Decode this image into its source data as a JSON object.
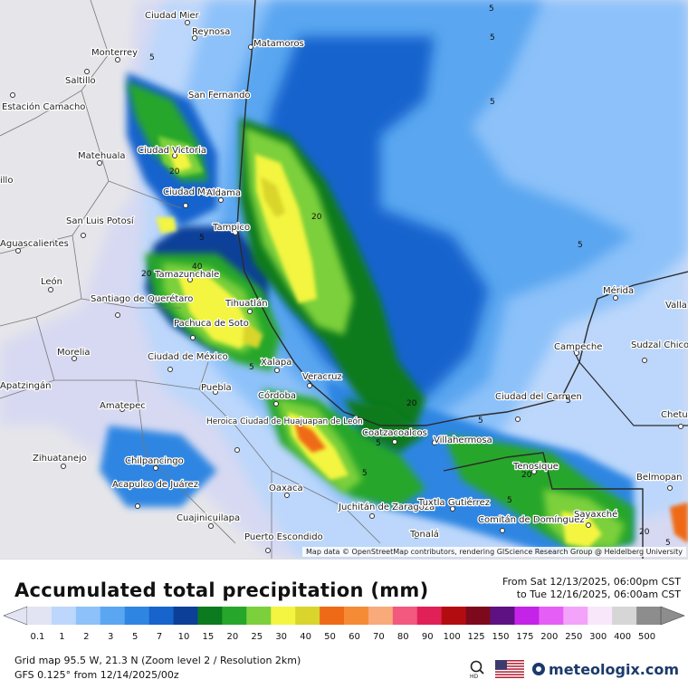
{
  "map": {
    "attribution": "Map data © OpenStreetMap contributors, rendering GIScience Research Group @ Heidelberg University",
    "cities": [
      {
        "name": "Ciudad Mier"
      },
      {
        "name": "Reynosa"
      },
      {
        "name": "Matamoros"
      },
      {
        "name": "Monterrey"
      },
      {
        "name": "Saltillo"
      },
      {
        "name": "San Fernando"
      },
      {
        "name": "Estación Camacho"
      },
      {
        "name": "Ciudad Victoria"
      },
      {
        "name": "Matehuala"
      },
      {
        "name": "illo"
      },
      {
        "name": "Ciudad Mante"
      },
      {
        "name": "Aldama"
      },
      {
        "name": "San Luis Potosí"
      },
      {
        "name": "Tampico"
      },
      {
        "name": "Aguascalientes"
      },
      {
        "name": "Tamazunchale"
      },
      {
        "name": "León"
      },
      {
        "name": "Santiago de Querétaro"
      },
      {
        "name": "Tihuatlán"
      },
      {
        "name": "Pachuca de Soto"
      },
      {
        "name": "Morelia"
      },
      {
        "name": "Ciudad de México"
      },
      {
        "name": "Xalapa"
      },
      {
        "name": "Veracruz"
      },
      {
        "name": "Apatzingán"
      },
      {
        "name": "Puebla"
      },
      {
        "name": "Córdoba"
      },
      {
        "name": "Amatepec"
      },
      {
        "name": "Heroica Ciudad de Huajuapan de León"
      },
      {
        "name": "Zihuatanejo"
      },
      {
        "name": "Chilpancingo"
      },
      {
        "name": "Acapulco de Juárez"
      },
      {
        "name": "Oaxaca"
      },
      {
        "name": "Cuajinicuilapa"
      },
      {
        "name": "Puerto Escondido"
      },
      {
        "name": "Juchitán de Zaragoza"
      },
      {
        "name": "Tonalá"
      },
      {
        "name": "Tuxtla Gutiérrez"
      },
      {
        "name": "Comitán de Domínguez"
      },
      {
        "name": "Coatzacoalcos"
      },
      {
        "name": "Villahermosa"
      },
      {
        "name": "Ciudad del Carmen"
      },
      {
        "name": "Tenosique"
      },
      {
        "name": "Sayaxché"
      },
      {
        "name": "Campeche"
      },
      {
        "name": "Mérida"
      },
      {
        "name": "Valla"
      },
      {
        "name": "Sudzal Chico"
      },
      {
        "name": "Chetu"
      },
      {
        "name": "Belmopan"
      }
    ],
    "contour_labels": [
      "5",
      "5",
      "5",
      "5",
      "5",
      "5",
      "5",
      "5",
      "5",
      "5",
      "5",
      "5",
      "20",
      "20",
      "20",
      "20",
      "20",
      "20",
      "40",
      "5"
    ]
  },
  "legend": {
    "title": "Accumulated total precipitation (mm)",
    "range_from": "From Sat 12/13/2025, 06:00pm CST",
    "range_to": "to Tue 12/16/2025, 06:00am CST",
    "ticks": [
      "0.1",
      "1",
      "2",
      "3",
      "5",
      "7",
      "10",
      "15",
      "20",
      "25",
      "30",
      "40",
      "50",
      "60",
      "70",
      "80",
      "90",
      "100",
      "125",
      "150",
      "175",
      "200",
      "250",
      "300",
      "400",
      "500"
    ],
    "colors": [
      "#e2e3f3",
      "#bcd7fb",
      "#8cc1f9",
      "#5aa6f0",
      "#2f86e2",
      "#1764cd",
      "#0b3f98",
      "#0c7a1f",
      "#27a62c",
      "#7bd03b",
      "#f3f541",
      "#d9d52c",
      "#ef6a16",
      "#f58b34",
      "#f8aa7a",
      "#f3587f",
      "#e02157",
      "#b30c10",
      "#7c0a1c",
      "#5e1183",
      "#c423e8",
      "#e55ff6",
      "#f4a3fa",
      "#f8e6fb",
      "#d6d6d6",
      "#8d8d8d"
    ]
  },
  "footer": {
    "grid": "Grid map 95.5 W, 21.3 N (Zoom level 2 / Resolution 2km)",
    "model": "GFS 0.125° from  12/14/2025/00z",
    "brand": "meteologix.com"
  }
}
